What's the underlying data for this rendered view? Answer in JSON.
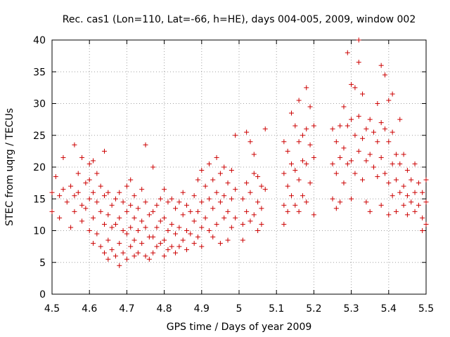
{
  "colors": {
    "series": "#cc0000",
    "grid": "#a0a0a0",
    "axis": "#000000"
  },
  "chart_data": {
    "type": "scatter",
    "title": "Rec. cas1 (Lon=110, Lat=-66, h=HE), days 004-005, 2009, window 002",
    "xlabel": "GPS time / Days of year 2009",
    "ylabel": "STEC from uqrg / TECUs",
    "xlim": [
      4.5,
      5.5
    ],
    "ylim": [
      0,
      40
    ],
    "grid": true,
    "legend": "none",
    "x_ticks": [
      4.5,
      4.6,
      4.7,
      4.8,
      4.9,
      5.0,
      5.1,
      5.2,
      5.3,
      5.4,
      5.5
    ],
    "x_tick_labels": [
      "4.5",
      "4.6",
      "4.7",
      "4.8",
      "4.9",
      "5",
      "5.1",
      "5.2",
      "5.3",
      "5.4",
      "5.5"
    ],
    "y_ticks": [
      0,
      5,
      10,
      15,
      20,
      25,
      30,
      35,
      40
    ],
    "y_tick_labels": [
      "0",
      "5",
      "10",
      "15",
      "20",
      "25",
      "30",
      "35",
      "40"
    ],
    "series": [
      {
        "name": "STEC",
        "marker": "+",
        "points": [
          [
            4.5,
            16.0
          ],
          [
            4.5,
            13.0
          ],
          [
            4.51,
            18.5
          ],
          [
            4.52,
            15.5
          ],
          [
            4.52,
            12.0
          ],
          [
            4.53,
            21.5
          ],
          [
            4.53,
            16.5
          ],
          [
            4.54,
            14.5
          ],
          [
            4.55,
            17.0
          ],
          [
            4.55,
            10.5
          ],
          [
            4.56,
            23.5
          ],
          [
            4.56,
            15.5
          ],
          [
            4.56,
            13.0
          ],
          [
            4.57,
            19.0
          ],
          [
            4.57,
            16.0
          ],
          [
            4.58,
            21.5
          ],
          [
            4.58,
            14.0
          ],
          [
            4.58,
            11.5
          ],
          [
            4.59,
            17.5
          ],
          [
            4.59,
            13.5
          ],
          [
            4.6,
            20.5
          ],
          [
            4.6,
            15.0
          ],
          [
            4.6,
            10.0
          ],
          [
            4.6,
            18.0
          ],
          [
            4.61,
            21.0
          ],
          [
            4.61,
            16.0
          ],
          [
            4.61,
            12.0
          ],
          [
            4.61,
            8.0
          ],
          [
            4.62,
            19.0
          ],
          [
            4.62,
            14.5
          ],
          [
            4.62,
            9.5
          ],
          [
            4.63,
            17.0
          ],
          [
            4.63,
            13.0
          ],
          [
            4.63,
            7.5
          ],
          [
            4.64,
            22.5
          ],
          [
            4.64,
            15.5
          ],
          [
            4.64,
            11.0
          ],
          [
            4.64,
            6.5
          ],
          [
            4.65,
            16.0
          ],
          [
            4.65,
            12.5
          ],
          [
            4.65,
            8.5
          ],
          [
            4.65,
            5.5
          ],
          [
            4.66,
            14.0
          ],
          [
            4.66,
            10.5
          ],
          [
            4.66,
            7.0
          ],
          [
            4.67,
            15.0
          ],
          [
            4.67,
            11.0
          ],
          [
            4.67,
            6.0
          ],
          [
            4.68,
            16.0
          ],
          [
            4.68,
            12.0
          ],
          [
            4.68,
            8.0
          ],
          [
            4.68,
            4.5
          ],
          [
            4.69,
            14.5
          ],
          [
            4.69,
            10.0
          ],
          [
            4.69,
            6.5
          ],
          [
            4.7,
            17.0
          ],
          [
            4.7,
            13.0
          ],
          [
            4.7,
            9.5
          ],
          [
            4.7,
            5.5
          ],
          [
            4.71,
            18.0
          ],
          [
            4.71,
            14.0
          ],
          [
            4.71,
            10.5
          ],
          [
            4.71,
            7.5
          ],
          [
            4.72,
            15.5
          ],
          [
            4.72,
            12.0
          ],
          [
            4.72,
            8.5
          ],
          [
            4.72,
            6.0
          ],
          [
            4.73,
            13.5
          ],
          [
            4.73,
            10.0
          ],
          [
            4.73,
            6.5
          ],
          [
            4.74,
            16.5
          ],
          [
            4.74,
            11.5
          ],
          [
            4.74,
            8.0
          ],
          [
            4.75,
            23.5
          ],
          [
            4.75,
            14.5
          ],
          [
            4.75,
            10.5
          ],
          [
            4.75,
            6.0
          ],
          [
            4.76,
            12.5
          ],
          [
            4.76,
            9.0
          ],
          [
            4.76,
            5.5
          ],
          [
            4.77,
            20.0
          ],
          [
            4.77,
            13.0
          ],
          [
            4.77,
            9.0
          ],
          [
            4.77,
            6.5
          ],
          [
            4.78,
            14.0
          ],
          [
            4.78,
            10.5
          ],
          [
            4.78,
            7.5
          ],
          [
            4.79,
            15.0
          ],
          [
            4.79,
            11.5
          ],
          [
            4.79,
            8.0
          ],
          [
            4.8,
            16.5
          ],
          [
            4.8,
            12.0
          ],
          [
            4.8,
            8.5
          ],
          [
            4.8,
            6.0
          ],
          [
            4.81,
            14.5
          ],
          [
            4.81,
            10.0
          ],
          [
            4.81,
            7.0
          ],
          [
            4.82,
            15.0
          ],
          [
            4.82,
            11.0
          ],
          [
            4.82,
            7.5
          ],
          [
            4.83,
            13.5
          ],
          [
            4.83,
            9.5
          ],
          [
            4.83,
            6.5
          ],
          [
            4.84,
            14.5
          ],
          [
            4.84,
            10.5
          ],
          [
            4.84,
            7.5
          ],
          [
            4.85,
            16.0
          ],
          [
            4.85,
            12.5
          ],
          [
            4.85,
            8.5
          ],
          [
            4.86,
            14.0
          ],
          [
            4.86,
            10.0
          ],
          [
            4.86,
            7.0
          ],
          [
            4.87,
            13.0
          ],
          [
            4.87,
            9.5
          ],
          [
            4.88,
            15.5
          ],
          [
            4.88,
            11.5
          ],
          [
            4.88,
            8.0
          ],
          [
            4.89,
            18.0
          ],
          [
            4.89,
            13.0
          ],
          [
            4.89,
            9.0
          ],
          [
            4.9,
            19.5
          ],
          [
            4.9,
            14.5
          ],
          [
            4.9,
            10.5
          ],
          [
            4.9,
            7.5
          ],
          [
            4.91,
            17.0
          ],
          [
            4.91,
            12.0
          ],
          [
            4.92,
            20.5
          ],
          [
            4.92,
            15.0
          ],
          [
            4.92,
            10.0
          ],
          [
            4.93,
            18.0
          ],
          [
            4.93,
            13.5
          ],
          [
            4.93,
            9.0
          ],
          [
            4.94,
            21.5
          ],
          [
            4.94,
            16.0
          ],
          [
            4.94,
            11.0
          ],
          [
            4.95,
            19.0
          ],
          [
            4.95,
            14.5
          ],
          [
            4.95,
            8.0
          ],
          [
            4.96,
            20.0
          ],
          [
            4.96,
            15.5
          ],
          [
            4.96,
            12.0
          ],
          [
            4.97,
            17.5
          ],
          [
            4.97,
            13.0
          ],
          [
            4.97,
            8.5
          ],
          [
            4.98,
            19.5
          ],
          [
            4.98,
            15.0
          ],
          [
            4.98,
            10.5
          ],
          [
            4.99,
            25.0
          ],
          [
            4.99,
            16.5
          ],
          [
            4.99,
            12.0
          ],
          [
            5.01,
            15.0
          ],
          [
            5.01,
            11.0
          ],
          [
            5.01,
            8.5
          ],
          [
            5.02,
            25.5
          ],
          [
            5.02,
            17.5
          ],
          [
            5.02,
            13.0
          ],
          [
            5.03,
            24.0
          ],
          [
            5.03,
            16.0
          ],
          [
            5.03,
            11.5
          ],
          [
            5.04,
            22.0
          ],
          [
            5.04,
            19.0
          ],
          [
            5.04,
            12.5
          ],
          [
            5.05,
            18.5
          ],
          [
            5.05,
            14.5
          ],
          [
            5.05,
            10.0
          ],
          [
            5.06,
            17.0
          ],
          [
            5.06,
            13.5
          ],
          [
            5.06,
            11.0
          ],
          [
            5.07,
            26.0
          ],
          [
            5.07,
            16.5
          ],
          [
            5.12,
            24.0
          ],
          [
            5.12,
            19.0
          ],
          [
            5.12,
            14.0
          ],
          [
            5.12,
            11.0
          ],
          [
            5.13,
            22.5
          ],
          [
            5.13,
            17.0
          ],
          [
            5.13,
            13.0
          ],
          [
            5.14,
            28.5
          ],
          [
            5.14,
            20.5
          ],
          [
            5.14,
            15.5
          ],
          [
            5.15,
            26.5
          ],
          [
            5.15,
            19.5
          ],
          [
            5.15,
            14.0
          ],
          [
            5.16,
            30.5
          ],
          [
            5.16,
            24.0
          ],
          [
            5.16,
            18.0
          ],
          [
            5.16,
            13.0
          ],
          [
            5.17,
            25.0
          ],
          [
            5.17,
            21.0
          ],
          [
            5.17,
            15.5
          ],
          [
            5.18,
            32.5
          ],
          [
            5.18,
            26.0
          ],
          [
            5.18,
            20.5
          ],
          [
            5.18,
            14.5
          ],
          [
            5.19,
            29.5
          ],
          [
            5.19,
            23.5
          ],
          [
            5.19,
            17.5
          ],
          [
            5.2,
            26.5
          ],
          [
            5.2,
            21.5
          ],
          [
            5.2,
            12.5
          ],
          [
            5.25,
            26.0
          ],
          [
            5.25,
            20.5
          ],
          [
            5.25,
            15.0
          ],
          [
            5.26,
            24.0
          ],
          [
            5.26,
            19.0
          ],
          [
            5.26,
            13.5
          ],
          [
            5.27,
            26.5
          ],
          [
            5.27,
            21.5
          ],
          [
            5.27,
            14.5
          ],
          [
            5.28,
            29.5
          ],
          [
            5.28,
            23.0
          ],
          [
            5.28,
            17.5
          ],
          [
            5.29,
            38.0
          ],
          [
            5.29,
            26.5
          ],
          [
            5.29,
            20.5
          ],
          [
            5.3,
            33.0
          ],
          [
            5.3,
            27.5
          ],
          [
            5.3,
            21.0
          ],
          [
            5.3,
            15.0
          ],
          [
            5.31,
            32.5
          ],
          [
            5.31,
            25.0
          ],
          [
            5.31,
            19.0
          ],
          [
            5.32,
            40.0
          ],
          [
            5.32,
            36.5
          ],
          [
            5.32,
            28.0
          ],
          [
            5.32,
            22.5
          ],
          [
            5.33,
            31.5
          ],
          [
            5.33,
            24.5
          ],
          [
            5.33,
            18.0
          ],
          [
            5.34,
            26.0
          ],
          [
            5.34,
            21.0
          ],
          [
            5.34,
            14.5
          ],
          [
            5.35,
            27.5
          ],
          [
            5.35,
            22.0
          ],
          [
            5.35,
            13.0
          ],
          [
            5.36,
            25.5
          ],
          [
            5.36,
            20.0
          ],
          [
            5.37,
            30.0
          ],
          [
            5.37,
            24.0
          ],
          [
            5.37,
            18.5
          ],
          [
            5.38,
            36.0
          ],
          [
            5.38,
            27.0
          ],
          [
            5.38,
            21.5
          ],
          [
            5.38,
            14.0
          ],
          [
            5.39,
            34.5
          ],
          [
            5.39,
            26.0
          ],
          [
            5.39,
            19.0
          ],
          [
            5.4,
            30.5
          ],
          [
            5.4,
            24.0
          ],
          [
            5.4,
            17.5
          ],
          [
            5.4,
            12.5
          ],
          [
            5.41,
            31.5
          ],
          [
            5.41,
            25.5
          ],
          [
            5.41,
            20.5
          ],
          [
            5.41,
            15.5
          ],
          [
            5.42,
            22.0
          ],
          [
            5.42,
            18.0
          ],
          [
            5.42,
            13.0
          ],
          [
            5.43,
            27.5
          ],
          [
            5.43,
            20.5
          ],
          [
            5.43,
            16.0
          ],
          [
            5.44,
            22.0
          ],
          [
            5.44,
            17.0
          ],
          [
            5.44,
            14.0
          ],
          [
            5.45,
            19.5
          ],
          [
            5.45,
            15.5
          ],
          [
            5.45,
            12.5
          ],
          [
            5.46,
            18.0
          ],
          [
            5.46,
            14.5
          ],
          [
            5.47,
            20.5
          ],
          [
            5.47,
            16.0
          ],
          [
            5.47,
            13.0
          ],
          [
            5.48,
            17.5
          ],
          [
            5.48,
            14.0
          ],
          [
            5.49,
            16.0
          ],
          [
            5.49,
            12.0
          ],
          [
            5.49,
            10.0
          ],
          [
            5.5,
            18.0
          ],
          [
            5.5,
            14.5
          ],
          [
            5.5,
            11.0
          ]
        ]
      }
    ]
  }
}
